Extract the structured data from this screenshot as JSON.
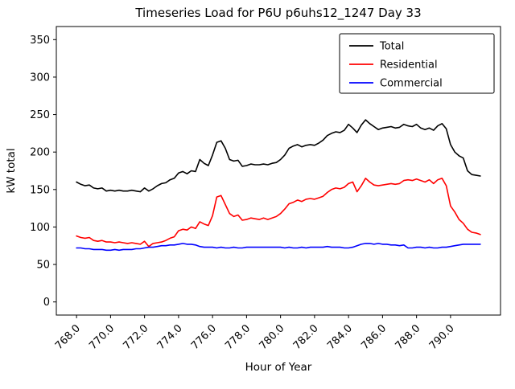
{
  "chart_data": {
    "type": "line",
    "title": "Timeseries Load for P6U p6uhs12_1247  Day 33",
    "xlabel": "Hour of Year",
    "ylabel": "kW total",
    "xlim": [
      766.81,
      792.94
    ],
    "ylim": [
      -17.5,
      367.5
    ],
    "xticks": [
      768,
      770,
      772,
      774,
      776,
      778,
      780,
      782,
      784,
      786,
      788,
      790
    ],
    "xtick_labels": [
      "768.0",
      "770.0",
      "772.0",
      "774.0",
      "776.0",
      "778.0",
      "780.0",
      "782.0",
      "784.0",
      "786.0",
      "788.0",
      "790.0"
    ],
    "yticks": [
      0,
      50,
      100,
      150,
      200,
      250,
      300,
      350
    ],
    "legend_position": "upper right",
    "grid": false,
    "x": [
      768.0,
      768.25,
      768.5,
      768.75,
      769.0,
      769.25,
      769.5,
      769.75,
      770.0,
      770.25,
      770.5,
      770.75,
      771.0,
      771.25,
      771.5,
      771.75,
      772.0,
      772.25,
      772.5,
      772.75,
      773.0,
      773.25,
      773.5,
      773.75,
      774.0,
      774.25,
      774.5,
      774.75,
      775.0,
      775.25,
      775.5,
      775.75,
      776.0,
      776.25,
      776.5,
      776.75,
      777.0,
      777.25,
      777.5,
      777.75,
      778.0,
      778.25,
      778.5,
      778.75,
      779.0,
      779.25,
      779.5,
      779.75,
      780.0,
      780.25,
      780.5,
      780.75,
      781.0,
      781.25,
      781.5,
      781.75,
      782.0,
      782.25,
      782.5,
      782.75,
      783.0,
      783.25,
      783.5,
      783.75,
      784.0,
      784.25,
      784.5,
      784.75,
      785.0,
      785.25,
      785.5,
      785.75,
      786.0,
      786.25,
      786.5,
      786.75,
      787.0,
      787.25,
      787.5,
      787.75,
      788.0,
      788.25,
      788.5,
      788.75,
      789.0,
      789.25,
      789.5,
      789.75,
      790.0,
      790.25,
      790.5,
      790.75,
      791.0,
      791.25,
      791.5,
      791.75
    ],
    "series": [
      {
        "name": "Total",
        "color": "#000000",
        "values": [
          160,
          157,
          155,
          156,
          152,
          151,
          152,
          148,
          149,
          148,
          149,
          148,
          148,
          149,
          148,
          147,
          152,
          148,
          151,
          155,
          158,
          159,
          163,
          165,
          172,
          174,
          171,
          175,
          174,
          190,
          185,
          182,
          196,
          213,
          215,
          205,
          190,
          188,
          189,
          181,
          182,
          184,
          183,
          183,
          184,
          183,
          185,
          186,
          190,
          196,
          205,
          208,
          210,
          207,
          209,
          210,
          209,
          212,
          216,
          222,
          225,
          227,
          226,
          229,
          237,
          232,
          226,
          236,
          243,
          238,
          234,
          230,
          232,
          233,
          234,
          232,
          233,
          237,
          235,
          234,
          237,
          232,
          230,
          232,
          229,
          235,
          238,
          231,
          210,
          200,
          195,
          192,
          175,
          170,
          169,
          168
        ]
      },
      {
        "name": "Residential",
        "color": "#ff0000",
        "values": [
          88,
          86,
          85,
          86,
          82,
          81,
          82,
          80,
          80,
          79,
          80,
          79,
          78,
          79,
          78,
          77,
          81,
          74,
          78,
          79,
          80,
          82,
          85,
          87,
          95,
          97,
          96,
          100,
          98,
          107,
          104,
          102,
          115,
          140,
          142,
          130,
          118,
          114,
          116,
          109,
          110,
          112,
          111,
          110,
          112,
          110,
          112,
          114,
          118,
          124,
          131,
          133,
          136,
          134,
          137,
          138,
          137,
          139,
          141,
          146,
          150,
          152,
          151,
          153,
          158,
          160,
          147,
          155,
          165,
          160,
          156,
          155,
          156,
          157,
          158,
          157,
          158,
          162,
          163,
          162,
          164,
          162,
          160,
          163,
          158,
          163,
          165,
          155,
          128,
          120,
          110,
          105,
          97,
          93,
          92,
          90
        ]
      },
      {
        "name": "Commercial",
        "color": "#0000ff",
        "values": [
          72,
          72,
          71,
          71,
          70,
          70,
          70,
          69,
          69,
          70,
          69,
          70,
          70,
          70,
          71,
          71,
          72,
          73,
          73,
          74,
          75,
          75,
          76,
          76,
          77,
          78,
          77,
          77,
          76,
          74,
          73,
          73,
          73,
          72,
          73,
          72,
          72,
          73,
          72,
          72,
          73,
          73,
          73,
          73,
          73,
          73,
          73,
          73,
          73,
          72,
          73,
          72,
          72,
          73,
          72,
          73,
          73,
          73,
          73,
          74,
          73,
          73,
          73,
          72,
          72,
          73,
          75,
          77,
          78,
          78,
          77,
          78,
          77,
          77,
          76,
          76,
          75,
          76,
          72,
          72,
          73,
          73,
          72,
          73,
          72,
          72,
          73,
          73,
          74,
          75,
          76,
          77,
          77,
          77,
          77,
          77
        ]
      }
    ]
  }
}
